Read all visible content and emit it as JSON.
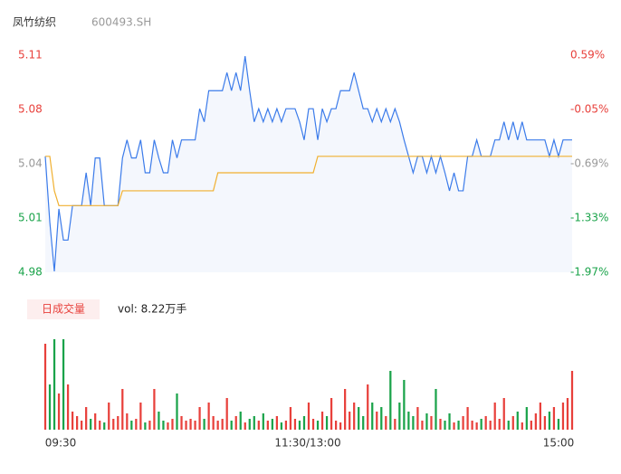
{
  "header": {
    "name": "凤竹纺织",
    "code": "600493.SH"
  },
  "chart_data": {
    "type": "intraday",
    "price": {
      "color": "#3b7bea",
      "values": [
        5.051,
        5.011,
        4.981,
        5.019,
        5.0,
        5.0,
        5.021,
        5.021,
        5.021,
        5.041,
        5.021,
        5.05,
        5.05,
        5.021,
        5.021,
        5.021,
        5.021,
        5.05,
        5.061,
        5.05,
        5.05,
        5.061,
        5.041,
        5.041,
        5.061,
        5.05,
        5.041,
        5.041,
        5.061,
        5.05,
        5.061,
        5.061,
        5.061,
        5.061,
        5.08,
        5.072,
        5.091,
        5.091,
        5.091,
        5.091,
        5.102,
        5.091,
        5.102,
        5.091,
        5.112,
        5.091,
        5.072,
        5.08,
        5.072,
        5.08,
        5.072,
        5.08,
        5.072,
        5.08,
        5.08,
        5.08,
        5.072,
        5.061,
        5.08,
        5.08,
        5.061,
        5.08,
        5.072,
        5.08,
        5.08,
        5.091,
        5.091,
        5.091,
        5.102,
        5.091,
        5.08,
        5.08,
        5.072,
        5.08,
        5.072,
        5.08,
        5.072,
        5.08,
        5.072,
        5.061,
        5.051,
        5.041,
        5.051,
        5.051,
        5.041,
        5.051,
        5.041,
        5.051,
        5.041,
        5.03,
        5.041,
        5.03,
        5.03,
        5.051,
        5.051,
        5.061,
        5.051,
        5.051,
        5.051,
        5.061,
        5.061,
        5.072,
        5.061,
        5.072,
        5.061,
        5.072,
        5.061,
        5.061,
        5.061,
        5.061,
        5.061,
        5.051,
        5.061,
        5.051,
        5.061,
        5.061,
        5.061
      ]
    },
    "average": {
      "color": "#f0b030",
      "values": [
        5.051,
        5.051,
        5.03,
        5.021,
        5.021,
        5.021,
        5.021,
        5.021,
        5.021,
        5.021,
        5.021,
        5.021,
        5.021,
        5.021,
        5.021,
        5.021,
        5.021,
        5.03,
        5.03,
        5.03,
        5.03,
        5.03,
        5.03,
        5.03,
        5.03,
        5.03,
        5.03,
        5.03,
        5.03,
        5.03,
        5.03,
        5.03,
        5.03,
        5.03,
        5.03,
        5.03,
        5.03,
        5.03,
        5.041,
        5.041,
        5.041,
        5.041,
        5.041,
        5.041,
        5.041,
        5.041,
        5.041,
        5.041,
        5.041,
        5.041,
        5.041,
        5.041,
        5.041,
        5.041,
        5.041,
        5.041,
        5.041,
        5.041,
        5.041,
        5.041,
        5.051,
        5.051,
        5.051,
        5.051,
        5.051,
        5.051,
        5.051,
        5.051,
        5.051,
        5.051,
        5.051,
        5.051,
        5.051,
        5.051,
        5.051,
        5.051,
        5.051,
        5.051,
        5.051,
        5.051,
        5.051,
        5.051,
        5.051,
        5.051,
        5.051,
        5.051,
        5.051,
        5.051,
        5.051,
        5.051,
        5.051,
        5.051,
        5.051,
        5.051,
        5.051,
        5.051,
        5.051,
        5.051,
        5.051,
        5.051,
        5.051,
        5.051,
        5.051,
        5.051,
        5.051,
        5.051,
        5.051,
        5.051,
        5.051,
        5.051,
        5.051,
        5.051,
        5.051,
        5.051,
        5.051,
        5.051,
        5.051
      ]
    },
    "ylim": [
      4.9804,
      5.1126
    ],
    "yticks": [
      {
        "value": 4.9804,
        "label": "4.98"
      },
      {
        "value": 5.0135,
        "label": "5.01"
      },
      {
        "value": 5.0465,
        "label": "5.04"
      },
      {
        "value": 5.0795,
        "label": "5.08"
      },
      {
        "value": 5.1126,
        "label": "5.11"
      }
    ],
    "ytick_colors": [
      "#1aa34a",
      "#1aa34a",
      "#999999",
      "#e8403b",
      "#e8403b"
    ],
    "y2lim": [
      -1.97,
      0.59
    ],
    "y2ticks": [
      {
        "value": -1.97,
        "label": "-1.97%"
      },
      {
        "value": -1.33,
        "label": "-1.33%"
      },
      {
        "value": -0.69,
        "label": "-0.69%"
      },
      {
        "value": -0.05,
        "label": "-0.05%"
      },
      {
        "value": 0.59,
        "label": "0.59%"
      }
    ],
    "volume": {
      "label": "日成交量",
      "summary": "vol: 8.22万手",
      "up_color": "#e8403b",
      "down_color": "#1aa34a",
      "ylim": [
        0,
        100
      ],
      "values": [
        95,
        50,
        100,
        40,
        100,
        50,
        20,
        15,
        10,
        25,
        12,
        18,
        10,
        8,
        30,
        12,
        15,
        45,
        18,
        10,
        12,
        30,
        8,
        10,
        45,
        20,
        10,
        8,
        12,
        40,
        15,
        10,
        12,
        10,
        25,
        12,
        30,
        15,
        10,
        12,
        35,
        10,
        15,
        20,
        8,
        12,
        15,
        10,
        18,
        10,
        12,
        15,
        8,
        10,
        25,
        12,
        10,
        15,
        30,
        12,
        10,
        20,
        15,
        35,
        10,
        8,
        45,
        20,
        30,
        25,
        15,
        50,
        30,
        20,
        25,
        15,
        65,
        12,
        30,
        55,
        20,
        15,
        25,
        10,
        18,
        15,
        45,
        12,
        10,
        18,
        8,
        10,
        15,
        25,
        10,
        8,
        12,
        15,
        10,
        30,
        12,
        35,
        10,
        15,
        20,
        8,
        25,
        10,
        18,
        30,
        15,
        20,
        25,
        12,
        30,
        35,
        65
      ]
    },
    "time_labels": [
      "09:30",
      "11:30/13:00",
      "15:00"
    ]
  }
}
